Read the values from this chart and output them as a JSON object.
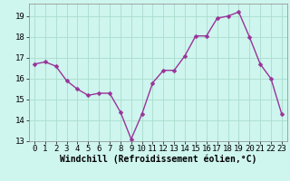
{
  "x": [
    0,
    1,
    2,
    3,
    4,
    5,
    6,
    7,
    8,
    9,
    10,
    11,
    12,
    13,
    14,
    15,
    16,
    17,
    18,
    19,
    20,
    21,
    22,
    23
  ],
  "y": [
    16.7,
    16.8,
    16.6,
    15.9,
    15.5,
    15.2,
    15.3,
    15.3,
    14.4,
    13.1,
    14.3,
    15.8,
    16.4,
    16.4,
    17.1,
    18.05,
    18.05,
    18.9,
    19.0,
    19.2,
    18.0,
    16.7,
    16.0,
    14.3
  ],
  "line_color": "#993399",
  "marker_color": "#993399",
  "bg_color": "#cef5ee",
  "grid_color": "#aaddcc",
  "xlabel": "Windchill (Refroidissement éolien,°C)",
  "xlim": [
    -0.5,
    23.5
  ],
  "ylim": [
    13,
    19.6
  ],
  "yticks": [
    13,
    14,
    15,
    16,
    17,
    18,
    19
  ],
  "xticks": [
    0,
    1,
    2,
    3,
    4,
    5,
    6,
    7,
    8,
    9,
    10,
    11,
    12,
    13,
    14,
    15,
    16,
    17,
    18,
    19,
    20,
    21,
    22,
    23
  ],
  "xlabel_fontsize": 7,
  "tick_fontsize": 6.5,
  "line_width": 1.0,
  "marker_size": 2.5
}
